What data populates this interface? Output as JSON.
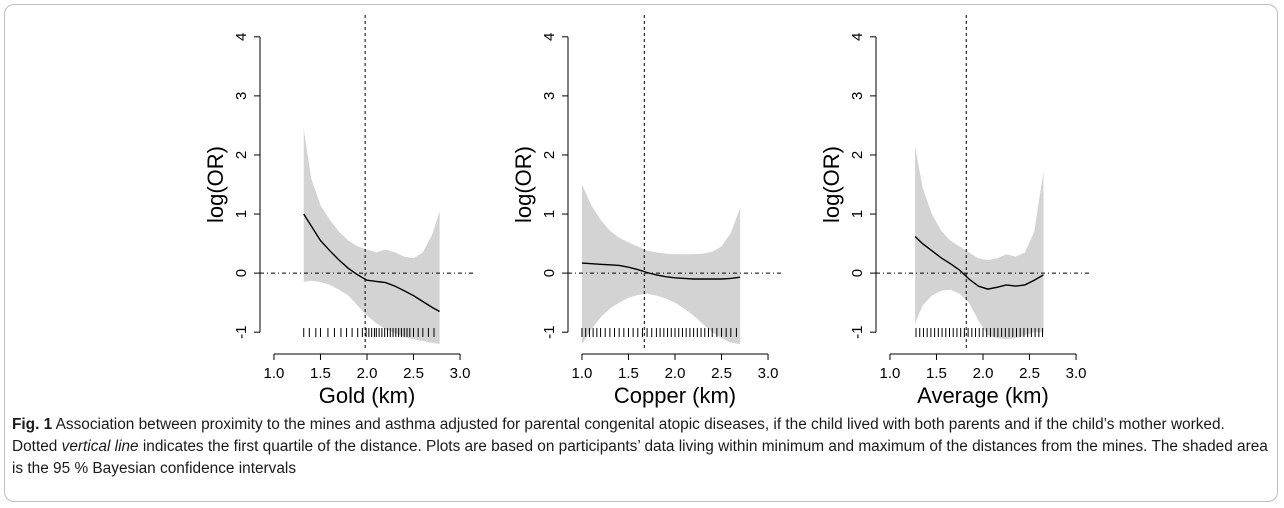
{
  "chart_data": [
    {
      "type": "line",
      "xlabel": "Gold (km)",
      "ylabel": "log(OR)",
      "xlim": [
        0.85,
        3.15
      ],
      "ylim": [
        -1.2,
        4.2
      ],
      "xticks": [
        "1.0",
        "1.5",
        "2.0",
        "2.5",
        "3.0"
      ],
      "yticks": [
        "-1",
        "0",
        "1",
        "2",
        "3",
        "4"
      ],
      "vline": 1.98,
      "hline": 0,
      "x": [
        1.32,
        1.4,
        1.5,
        1.6,
        1.7,
        1.8,
        1.9,
        2.0,
        2.1,
        2.2,
        2.3,
        2.4,
        2.5,
        2.6,
        2.7,
        2.78
      ],
      "y": [
        1.0,
        0.8,
        0.55,
        0.38,
        0.22,
        0.08,
        -0.03,
        -0.12,
        -0.14,
        -0.16,
        -0.22,
        -0.3,
        -0.38,
        -0.48,
        -0.58,
        -0.65
      ],
      "lower": [
        -0.15,
        -0.13,
        -0.15,
        -0.2,
        -0.28,
        -0.38,
        -0.55,
        -0.72,
        -0.85,
        -0.95,
        -1.02,
        -1.08,
        -1.12,
        -1.15,
        -1.18,
        -1.2
      ],
      "upper": [
        2.45,
        1.6,
        1.15,
        0.9,
        0.7,
        0.55,
        0.45,
        0.4,
        0.35,
        0.4,
        0.35,
        0.28,
        0.25,
        0.35,
        0.65,
        1.05
      ],
      "rug": [
        1.32,
        1.38,
        1.45,
        1.5,
        1.58,
        1.65,
        1.72,
        1.78,
        1.84,
        1.9,
        1.95,
        1.99,
        2.02,
        2.05,
        2.08,
        2.1,
        2.13,
        2.16,
        2.19,
        2.22,
        2.25,
        2.28,
        2.31,
        2.34,
        2.37,
        2.4,
        2.43,
        2.46,
        2.5,
        2.55,
        2.6,
        2.66,
        2.72
      ]
    },
    {
      "type": "line",
      "xlabel": "Copper (km)",
      "ylabel": "log(OR)",
      "xlim": [
        0.85,
        3.15
      ],
      "ylim": [
        -1.2,
        4.2
      ],
      "xticks": [
        "1.0",
        "1.5",
        "2.0",
        "2.5",
        "3.0"
      ],
      "yticks": [
        "-1",
        "0",
        "1",
        "2",
        "3",
        "4"
      ],
      "vline": 1.67,
      "hline": 0,
      "x": [
        1.0,
        1.1,
        1.2,
        1.3,
        1.4,
        1.5,
        1.6,
        1.7,
        1.8,
        1.9,
        2.0,
        2.1,
        2.2,
        2.3,
        2.4,
        2.5,
        2.6,
        2.7
      ],
      "y": [
        0.17,
        0.16,
        0.15,
        0.14,
        0.13,
        0.1,
        0.06,
        0.01,
        -0.03,
        -0.06,
        -0.08,
        -0.09,
        -0.1,
        -0.1,
        -0.1,
        -0.1,
        -0.09,
        -0.07
      ],
      "lower": [
        -1.2,
        -0.95,
        -0.75,
        -0.6,
        -0.5,
        -0.42,
        -0.37,
        -0.35,
        -0.38,
        -0.43,
        -0.5,
        -0.6,
        -0.72,
        -0.86,
        -1.0,
        -1.1,
        -1.18,
        -1.2
      ],
      "upper": [
        1.5,
        1.15,
        0.9,
        0.72,
        0.6,
        0.52,
        0.45,
        0.38,
        0.35,
        0.33,
        0.32,
        0.32,
        0.32,
        0.33,
        0.36,
        0.45,
        0.68,
        1.1
      ],
      "rug": [
        1.0,
        1.04,
        1.08,
        1.12,
        1.16,
        1.2,
        1.25,
        1.3,
        1.35,
        1.4,
        1.45,
        1.5,
        1.55,
        1.6,
        1.65,
        1.7,
        1.75,
        1.8,
        1.84,
        1.88,
        1.92,
        1.96,
        2.0,
        2.04,
        2.08,
        2.12,
        2.16,
        2.2,
        2.24,
        2.28,
        2.32,
        2.36,
        2.4,
        2.45,
        2.5,
        2.55,
        2.6,
        2.66
      ]
    },
    {
      "type": "line",
      "xlabel": "Average (km)",
      "ylabel": "log(OR)",
      "xlim": [
        0.85,
        3.15
      ],
      "ylim": [
        -1.2,
        4.2
      ],
      "xticks": [
        "1.0",
        "1.5",
        "2.0",
        "2.5",
        "3.0"
      ],
      "yticks": [
        "-1",
        "0",
        "1",
        "2",
        "3",
        "4"
      ],
      "vline": 1.82,
      "hline": 0,
      "x": [
        1.27,
        1.35,
        1.45,
        1.55,
        1.65,
        1.75,
        1.85,
        1.95,
        2.05,
        2.15,
        2.25,
        2.35,
        2.45,
        2.55,
        2.65
      ],
      "y": [
        0.62,
        0.5,
        0.38,
        0.26,
        0.16,
        0.05,
        -0.1,
        -0.22,
        -0.27,
        -0.24,
        -0.2,
        -0.22,
        -0.2,
        -0.12,
        -0.03
      ],
      "lower": [
        -0.85,
        -0.55,
        -0.38,
        -0.3,
        -0.28,
        -0.35,
        -0.5,
        -0.8,
        -1.05,
        -1.1,
        -1.12,
        -1.1,
        -1.05,
        -1.0,
        -1.0
      ],
      "upper": [
        2.15,
        1.45,
        1.0,
        0.72,
        0.55,
        0.45,
        0.35,
        0.25,
        0.22,
        0.25,
        0.32,
        0.28,
        0.35,
        0.7,
        1.72
      ],
      "rug": [
        1.28,
        1.32,
        1.36,
        1.4,
        1.44,
        1.48,
        1.52,
        1.56,
        1.6,
        1.64,
        1.68,
        1.72,
        1.76,
        1.8,
        1.84,
        1.88,
        1.92,
        1.96,
        2.0,
        2.04,
        2.08,
        2.12,
        2.16,
        2.2,
        2.24,
        2.28,
        2.32,
        2.36,
        2.4,
        2.44,
        2.48,
        2.52,
        2.56,
        2.6,
        2.64
      ]
    }
  ],
  "colors": {
    "band": "#d3d3d3",
    "line": "#000000",
    "frame_border": "#bfbfbf"
  },
  "caption": {
    "fig_label": "Fig. 1",
    "text_1": " Association between proximity to the mines and asthma adjusted for parental congenital atopic diseases, if the child lived with both parents and if the child’s mother worked. Dotted ",
    "em_text": "vertical line",
    "text_2": " indicates the first quartile of the distance. Plots are based on participants’ data living within minimum and maximum of the distances from the mines. The shaded area is the 95 % Bayesian confidence intervals"
  }
}
